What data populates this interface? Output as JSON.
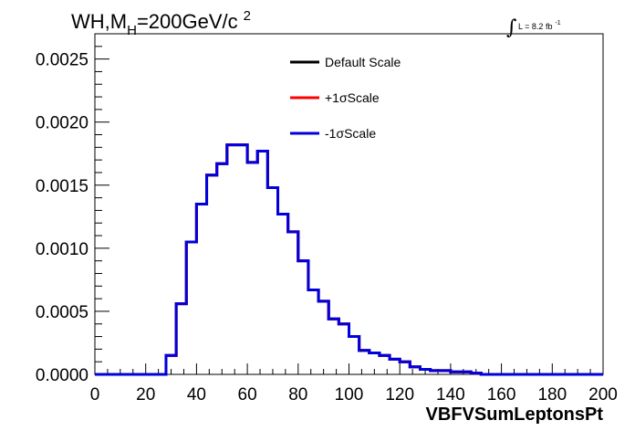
{
  "chart_data": {
    "type": "line",
    "style": "step-histogram",
    "title_main": "WH,M",
    "title_sub": "H",
    "title_rest": "=200GeV/c",
    "title_sup": "2",
    "lumi": {
      "integral_sign": "∫",
      "text": "L = 8.2 fb",
      "sup": "-1"
    },
    "xlabel": "VBFVSumLeptonsPt",
    "ylabel": "",
    "xlim": [
      0,
      200
    ],
    "ylim": [
      0,
      0.0027
    ],
    "x_ticks": [
      0,
      20,
      40,
      60,
      80,
      100,
      120,
      140,
      160,
      180,
      200
    ],
    "y_ticks": [
      {
        "value": 0.0,
        "label": "0.0000"
      },
      {
        "value": 0.0005,
        "label": "0.0005"
      },
      {
        "value": 0.001,
        "label": "0.0010"
      },
      {
        "value": 0.0015,
        "label": "0.0015"
      },
      {
        "value": 0.002,
        "label": "0.0020"
      },
      {
        "value": 0.0025,
        "label": "0.0025"
      }
    ],
    "grid": false,
    "legend_position": "top-center",
    "bin_edges": [
      0,
      4,
      8,
      12,
      16,
      20,
      24,
      28,
      32,
      36,
      40,
      44,
      48,
      52,
      56,
      60,
      64,
      68,
      72,
      76,
      80,
      84,
      88,
      92,
      96,
      100,
      104,
      108,
      112,
      116,
      120,
      124,
      128,
      132,
      136,
      140,
      144,
      148,
      152,
      156,
      160,
      164,
      168,
      172,
      176,
      180,
      184,
      188,
      192,
      196,
      200
    ],
    "series": [
      {
        "name": "Default Scale",
        "color": "#000000",
        "values": [
          0,
          0,
          0,
          0,
          0,
          0,
          0,
          0.00015,
          0.00056,
          0.00105,
          0.00135,
          0.00158,
          0.00167,
          0.00182,
          0.00182,
          0.00168,
          0.00177,
          0.00148,
          0.00127,
          0.00113,
          0.0009,
          0.00067,
          0.00058,
          0.00044,
          0.0004,
          0.0003,
          0.00019,
          0.00017,
          0.00015,
          0.00012,
          0.0001,
          6e-05,
          4e-05,
          3e-05,
          3e-05,
          2e-05,
          2e-05,
          1e-05,
          0,
          0,
          0,
          0,
          0,
          0,
          0,
          0,
          0,
          0,
          0,
          0
        ]
      },
      {
        "name": "+1σScale",
        "color": "#ff0000",
        "values": [
          0,
          0,
          0,
          0,
          0,
          0,
          0,
          0.00015,
          0.00056,
          0.00105,
          0.00135,
          0.00158,
          0.00167,
          0.00182,
          0.00182,
          0.00168,
          0.00177,
          0.00148,
          0.00127,
          0.00113,
          0.0009,
          0.00067,
          0.00058,
          0.00044,
          0.0004,
          0.0003,
          0.00019,
          0.00017,
          0.00015,
          0.00012,
          0.0001,
          6e-05,
          4e-05,
          3e-05,
          3e-05,
          2e-05,
          2e-05,
          1e-05,
          0,
          0,
          0,
          0,
          0,
          0,
          0,
          0,
          0,
          0,
          0,
          0
        ]
      },
      {
        "name": "-1σScale",
        "color": "#0000dd",
        "values": [
          0,
          0,
          0,
          0,
          0,
          0,
          0,
          0.00015,
          0.00056,
          0.00105,
          0.00135,
          0.00158,
          0.00167,
          0.00182,
          0.00182,
          0.00168,
          0.00177,
          0.00148,
          0.00127,
          0.00113,
          0.0009,
          0.00067,
          0.00058,
          0.00044,
          0.0004,
          0.0003,
          0.00019,
          0.00017,
          0.00015,
          0.00012,
          0.0001,
          6e-05,
          4e-05,
          3e-05,
          3e-05,
          2e-05,
          2e-05,
          1e-05,
          0,
          0,
          0,
          0,
          0,
          0,
          0,
          0,
          0,
          0,
          0,
          0
        ]
      }
    ]
  }
}
